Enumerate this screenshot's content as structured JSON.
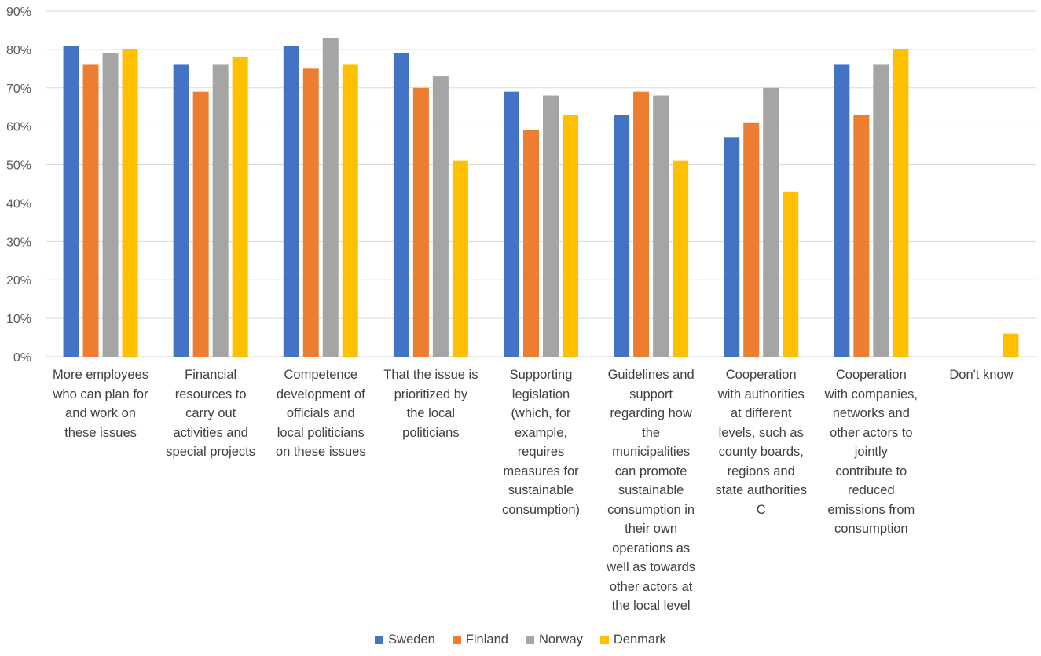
{
  "chart_data": {
    "type": "bar",
    "title": "",
    "xlabel": "",
    "ylabel": "",
    "ylim": [
      0,
      90
    ],
    "yticks": [
      "0%",
      "10%",
      "20%",
      "30%",
      "40%",
      "50%",
      "60%",
      "70%",
      "80%",
      "90%"
    ],
    "grid": true,
    "legend_position": "bottom",
    "categories": [
      "More employees\nwho can plan for\nand work on\nthese issues",
      "Financial\nresources to\ncarry out\nactivities and\nspecial projects",
      "Competence\ndevelopment of\nofficials and\nlocal politicians\non these issues",
      "That the issue is\nprioritized by\nthe local\npoliticians",
      "Supporting\nlegislation\n(which, for\nexample,\nrequires\nmeasures for\nsustainable\nconsumption)",
      "Guidelines and\nsupport\nregarding how\nthe\nmunicipalities\ncan promote\nsustainable\nconsumption in\ntheir own\noperations as\nwell as towards\nother actors at\nthe local level",
      "Cooperation\nwith authorities\nat different\nlevels, such as\ncounty boards,\nregions and\nstate authorities\nC",
      "Cooperation\nwith companies,\nnetworks and\nother actors to\njointly\ncontribute to\nreduced\nemissions from\nconsumption",
      "Don't know"
    ],
    "series": [
      {
        "name": "Sweden",
        "color": "#4472C4",
        "values": [
          81,
          76,
          81,
          79,
          69,
          63,
          57,
          76,
          0
        ]
      },
      {
        "name": "Finland",
        "color": "#ED7D31",
        "values": [
          76,
          69,
          75,
          70,
          59,
          69,
          61,
          63,
          0
        ]
      },
      {
        "name": "Norway",
        "color": "#A5A5A5",
        "values": [
          79,
          76,
          83,
          73,
          68,
          68,
          70,
          76,
          0
        ]
      },
      {
        "name": "Denmark",
        "color": "#FFC000",
        "values": [
          80,
          78,
          76,
          51,
          63,
          51,
          43,
          80,
          6
        ]
      }
    ]
  }
}
